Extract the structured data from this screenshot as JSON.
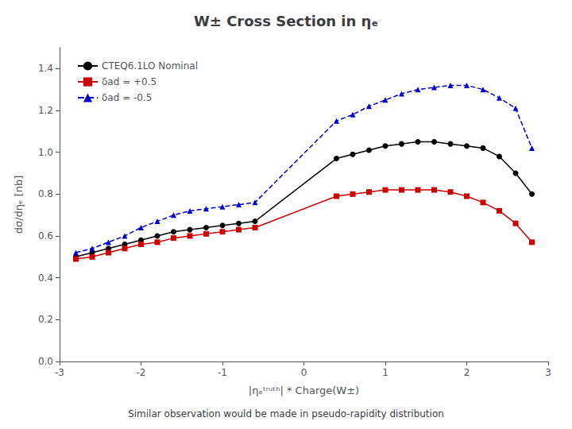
{
  "chart_data": {
    "type": "line",
    "title": "W± Cross Section in ηₑ",
    "subtitle": "Similar observation would be made in pseudo-rapidity distribution",
    "xlabel": "|ηₑᵗʳᵘᵗʰ| * Charge(W±)",
    "ylabel": "dσ/dηₑ [nb]",
    "xlim": [
      -3,
      3
    ],
    "ylim": [
      0,
      1.5
    ],
    "xticks": [
      -3,
      -2,
      -1,
      0,
      1,
      2,
      3
    ],
    "yticks": [
      {
        "value": 0,
        "label": "0.0"
      },
      0.2,
      0.4,
      0.6,
      0.8,
      {
        "value": 1.0,
        "label": "1.0"
      },
      1.2,
      1.4
    ],
    "grid": false,
    "legend": "upper left",
    "x": [
      -2.8,
      -2.6,
      -2.4,
      -2.2,
      -2.0,
      -1.8,
      -1.6,
      -1.4,
      -1.2,
      -1.0,
      -0.8,
      -0.6,
      0.4,
      0.6,
      0.8,
      1.0,
      1.2,
      1.4,
      1.6,
      1.8,
      2.0,
      2.2,
      2.4,
      2.6,
      2.8
    ],
    "series": [
      {
        "name": "CTEQ6.1LO Nominal",
        "color": "#000000",
        "marker": "circle",
        "line_style": "solid",
        "values": [
          0.5,
          0.52,
          0.54,
          0.56,
          0.58,
          0.6,
          0.62,
          0.63,
          0.64,
          0.65,
          0.66,
          0.67,
          0.97,
          0.99,
          1.01,
          1.03,
          1.04,
          1.05,
          1.05,
          1.04,
          1.03,
          1.02,
          0.98,
          0.9,
          0.8
        ]
      },
      {
        "name": "δad = +0.5",
        "color": "#cc0000",
        "marker": "square",
        "line_style": "solid",
        "values": [
          0.49,
          0.5,
          0.52,
          0.54,
          0.56,
          0.57,
          0.59,
          0.6,
          0.61,
          0.62,
          0.63,
          0.64,
          0.79,
          0.8,
          0.81,
          0.82,
          0.82,
          0.82,
          0.82,
          0.81,
          0.79,
          0.76,
          0.72,
          0.66,
          0.57
        ]
      },
      {
        "name": "δad = -0.5",
        "color": "#0000cc",
        "marker": "triangle",
        "line_style": "dashed",
        "values": [
          0.52,
          0.54,
          0.57,
          0.6,
          0.64,
          0.67,
          0.7,
          0.72,
          0.73,
          0.74,
          0.75,
          0.76,
          1.15,
          1.18,
          1.22,
          1.25,
          1.28,
          1.3,
          1.31,
          1.32,
          1.32,
          1.3,
          1.26,
          1.21,
          1.02
        ]
      }
    ]
  }
}
